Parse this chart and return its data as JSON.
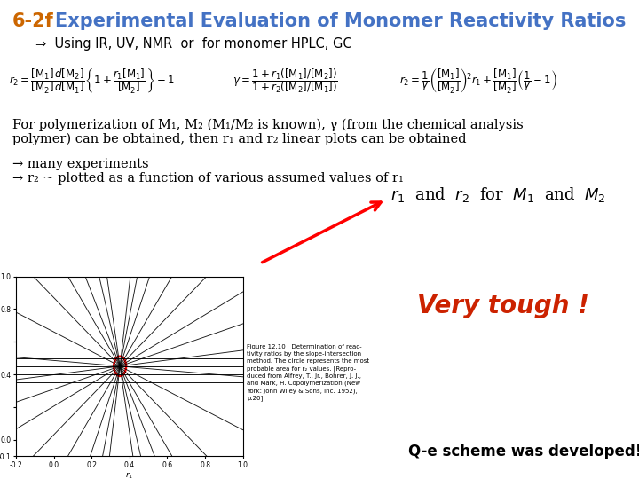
{
  "bg_color": "#ffffff",
  "title_num": "6-2f",
  "title_num_color": "#cc6600",
  "title_text": "Experimental Evaluation of Monomer Reactivity Ratios",
  "title_color": "#4472c4",
  "title_fontsize": 15,
  "arrow_line": "⇒  Using IR, UV, NMR  or  for monomer HPLC, GC",
  "arrow_fontsize": 10.5,
  "para1": "For polymerization of M₁, M₂ (M₁/M₂ is known), γ (from the chemical analysis",
  "para2": "polymer) can be obtained, then r₁ and r₂ linear plots can be obtained",
  "para_fontsize": 10.5,
  "bullet1": "→ many experiments",
  "bullet2": "→ r₂ ~ plotted as a function of various assumed values of r₁",
  "bullet_fontsize": 10.5,
  "r1r2_fontsize": 13,
  "tough_text": "Very tough !",
  "tough_color": "#cc2200",
  "tough_fontsize": 20,
  "qe_text": "Q-e scheme was developed!",
  "qe_fontsize": 12,
  "fig_caption": "Figure 12.10   Determination of reac-\ntivity ratios by the slope-intersection\nmethod. The circle represents the most\nprobable area for r₂ values. [Repro-\nduced from Alfrey, T., Jr., Bohrer, J. J.,\nand Mark, H. Copolymerization (New\nYork: John Wiley & Sons, Inc. 1952),\np.20]",
  "fig_caption_fontsize": 5.0
}
